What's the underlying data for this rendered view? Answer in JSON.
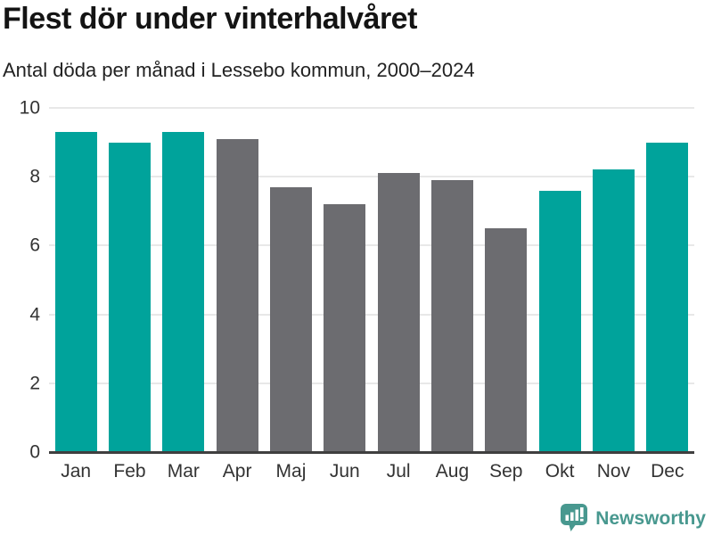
{
  "page": {
    "title": "Flest dör under vinterhalvåret",
    "subtitle": "Antal döda per månad i Lessebo kommun, 2000–2024"
  },
  "chart_data": {
    "type": "bar",
    "title": "Flest dör under vinterhalvåret",
    "subtitle": "Antal döda per månad i Lessebo kommun, 2000–2024",
    "categories": [
      "Jan",
      "Feb",
      "Mar",
      "Apr",
      "Maj",
      "Jun",
      "Jul",
      "Aug",
      "Sep",
      "Okt",
      "Nov",
      "Dec"
    ],
    "values": [
      9.3,
      9.0,
      9.3,
      9.1,
      7.7,
      7.2,
      8.1,
      7.9,
      6.5,
      7.6,
      8.2,
      9.0
    ],
    "bar_colors": [
      "teal",
      "teal",
      "teal",
      "gray",
      "gray",
      "gray",
      "gray",
      "gray",
      "gray",
      "teal",
      "teal",
      "teal"
    ],
    "palette": {
      "teal": "#00a39b",
      "gray": "#6c6c70"
    },
    "ylim": [
      0,
      10
    ],
    "yticks": [
      0,
      2,
      4,
      6,
      8,
      10
    ],
    "xlabel": "",
    "ylabel": "",
    "grid": "horizontal",
    "legend": "none"
  },
  "footer": {
    "brand": "Newsworthy",
    "logo_icon": "speech-bubble-bar-chart-icon",
    "brand_color": "#48988f"
  },
  "colors": {
    "bar_teal": "#00a39b",
    "bar_gray": "#6c6c70",
    "gridline": "#e8e8e8",
    "axis_line": "#3f3f3f",
    "tick_text": "#333333",
    "title_text": "#141414"
  }
}
